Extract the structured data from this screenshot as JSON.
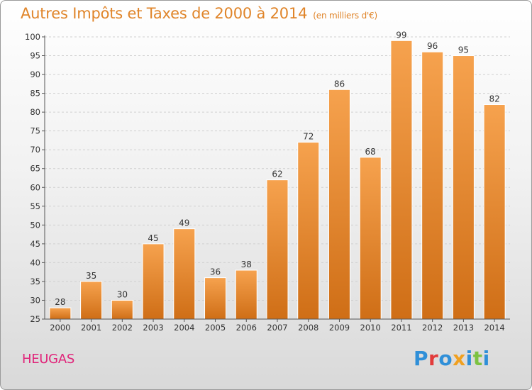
{
  "header": {
    "title": "Autres Impôts et Taxes de 2000 à 2014",
    "unit": "(en milliers d'€)"
  },
  "footer": {
    "commune": "HEUGAS",
    "brand": "Proxiti"
  },
  "colors": {
    "bar_light": "#f6a24e",
    "bar_dark": "#cf6e16",
    "title": "#e0852a",
    "commune": "#e0257a",
    "grid": "#d0d0d0"
  },
  "chart_data": {
    "type": "bar",
    "categories": [
      "2000",
      "2001",
      "2002",
      "2003",
      "2004",
      "2005",
      "2006",
      "2007",
      "2008",
      "2009",
      "2010",
      "2011",
      "2012",
      "2013",
      "2014"
    ],
    "values": [
      28,
      35,
      30,
      45,
      49,
      36,
      38,
      62,
      72,
      86,
      68,
      99,
      96,
      95,
      82
    ],
    "ylim": [
      25,
      100
    ],
    "yticks": [
      25,
      30,
      35,
      40,
      45,
      50,
      55,
      60,
      65,
      70,
      75,
      80,
      85,
      90,
      95,
      100
    ],
    "grid": "horizontal dashed",
    "legend": "none"
  }
}
